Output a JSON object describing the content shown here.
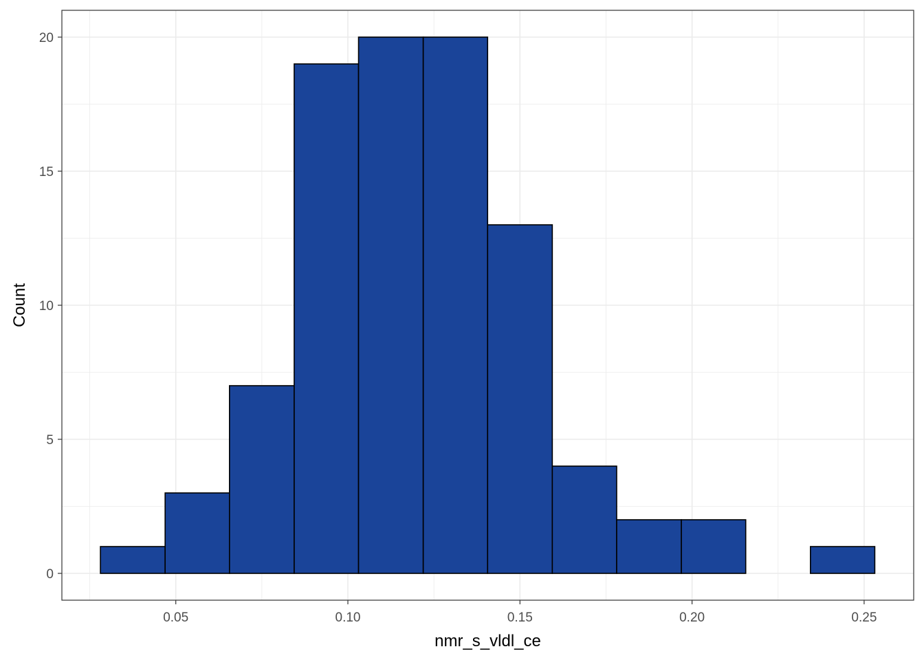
{
  "chart_data": {
    "type": "bar",
    "subtype": "histogram",
    "title": "",
    "xlabel": "nmr_s_vldl_ce",
    "ylabel": "Count",
    "bin_width": 0.01875,
    "bins": [
      {
        "start": 0.0281,
        "end": 0.0469,
        "count": 1
      },
      {
        "start": 0.0469,
        "end": 0.0656,
        "count": 3
      },
      {
        "start": 0.0656,
        "end": 0.0844,
        "count": 7
      },
      {
        "start": 0.0844,
        "end": 0.1031,
        "count": 19
      },
      {
        "start": 0.1031,
        "end": 0.1219,
        "count": 20
      },
      {
        "start": 0.1219,
        "end": 0.1406,
        "count": 20
      },
      {
        "start": 0.1406,
        "end": 0.1594,
        "count": 13
      },
      {
        "start": 0.1594,
        "end": 0.1781,
        "count": 4
      },
      {
        "start": 0.1781,
        "end": 0.1969,
        "count": 2
      },
      {
        "start": 0.1969,
        "end": 0.2156,
        "count": 2
      },
      {
        "start": 0.2156,
        "end": 0.2344,
        "count": 0
      },
      {
        "start": 0.2344,
        "end": 0.2531,
        "count": 1
      }
    ],
    "xlim": [
      0.0169,
      0.2644
    ],
    "ylim": [
      -1,
      21
    ],
    "x_ticks": [
      0.05,
      0.1,
      0.15,
      0.2,
      0.25
    ],
    "x_tick_labels": [
      "0.05",
      "0.10",
      "0.15",
      "0.20",
      "0.25"
    ],
    "y_ticks": [
      0,
      5,
      10,
      15,
      20
    ],
    "y_tick_labels": [
      "0",
      "5",
      "10",
      "15",
      "20"
    ],
    "x_minor_ticks": [
      0.025,
      0.075,
      0.125,
      0.175,
      0.225
    ],
    "y_minor_ticks": [
      2.5,
      7.5,
      12.5,
      17.5
    ],
    "grid": true,
    "bar_fill": "#1A4499",
    "bar_outline": "#000000",
    "grid_color": "#EBEBEB",
    "panel_border_color": "#333333"
  }
}
